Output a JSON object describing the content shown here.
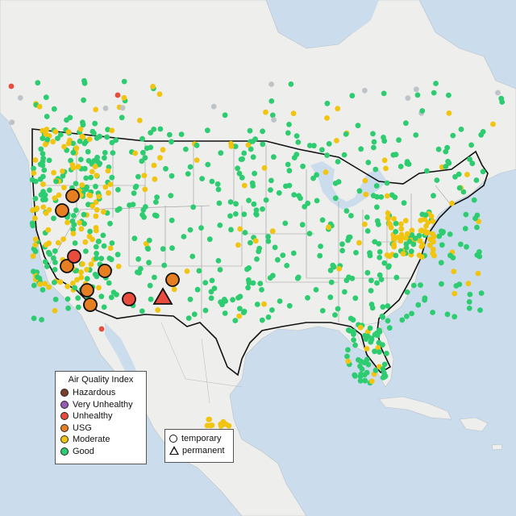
{
  "colors": {
    "water": "#cbdcec",
    "land": "#eeeeec",
    "good": "#2ecc71",
    "moderate": "#f1c40f",
    "usg": "#e67e22",
    "unhealthy": "#e74c3c",
    "very_unhealthy": "#9b59b6",
    "hazardous": "#7b3f2a",
    "nodata": "#bdc3c7"
  },
  "legend_aqi": {
    "title": "Air Quality Index",
    "items": [
      {
        "label": "Hazardous",
        "color": "#7b3f2a"
      },
      {
        "label": "Very Unhealthy",
        "color": "#9b59b6"
      },
      {
        "label": "Unhealthy",
        "color": "#e74c3c"
      },
      {
        "label": "USG",
        "color": "#e67e22"
      },
      {
        "label": "Moderate",
        "color": "#f1c40f"
      },
      {
        "label": "Good",
        "color": "#2ecc71"
      }
    ]
  },
  "legend_shape": {
    "temporary": "temporary",
    "permanent": "permanent"
  },
  "fire_markers": [
    {
      "category": "usg",
      "shape": "circle"
    },
    {
      "category": "usg",
      "shape": "circle"
    },
    {
      "category": "usg",
      "shape": "circle"
    },
    {
      "category": "unhealthy",
      "shape": "circle"
    },
    {
      "category": "usg",
      "shape": "circle"
    },
    {
      "category": "usg",
      "shape": "circle"
    },
    {
      "category": "usg",
      "shape": "circle"
    },
    {
      "category": "usg",
      "shape": "circle"
    },
    {
      "category": "unhealthy",
      "shape": "circle"
    },
    {
      "category": "usg",
      "shape": "circle"
    },
    {
      "category": "unhealthy",
      "shape": "triangle"
    }
  ]
}
